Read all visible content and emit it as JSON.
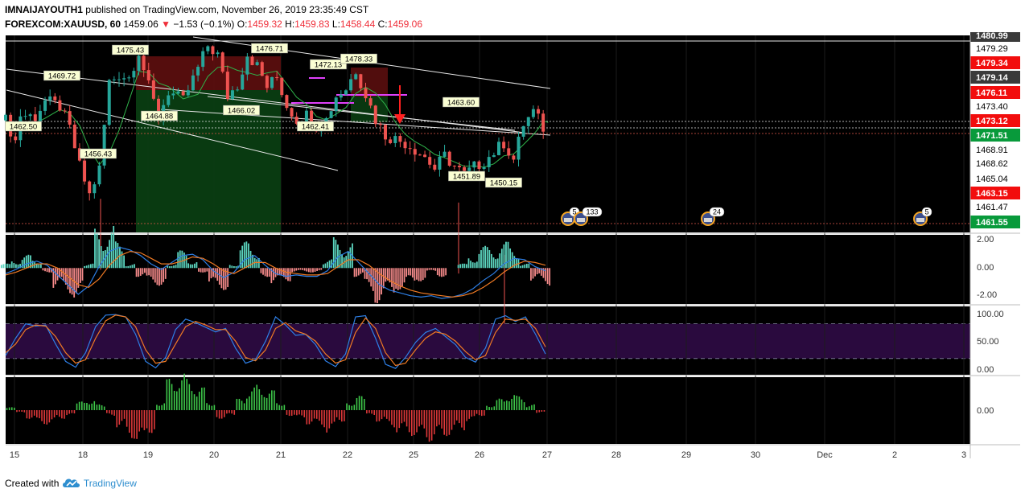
{
  "header": {
    "author": "IMNAIJAYOUTH1",
    "published_text": "published on TradingView.com, November 26, 2019 23:35:49 CST",
    "symbol": "FOREXCOM:XAUUSD, 60",
    "last_price": "1459.06",
    "change": "−1.53 (−0.1%)",
    "o_label": "O:",
    "o_value": "1459.32",
    "h_label": "H:",
    "h_value": "1459.83",
    "l_label": "L:",
    "l_value": "1458.44",
    "c_label": "C:",
    "c_value": "1459.06"
  },
  "footer": {
    "created_with": "Created with",
    "brand": "TradingView"
  },
  "colors": {
    "background": "#000000",
    "up": "#26a69a",
    "down": "#ef5350",
    "axis_green": "#089a3b",
    "axis_red": "#f20d0d",
    "axis_gray": "#3a3a3a",
    "stoch_band": "#2a0a3e",
    "macd_line": "#2e7fe6",
    "signal_line": "#f07a24"
  },
  "chart_data": [
    {
      "type": "candlestick",
      "symbol": "FOREXCOM:XAUUSD",
      "interval": "60",
      "ylim": [
        1460.4,
        1481.5
      ],
      "x_ticks": [
        "15",
        "18",
        "19",
        "20",
        "21",
        "22",
        "25",
        "26",
        "27",
        "28",
        "29",
        "30",
        "Dec",
        "2",
        "3"
      ],
      "price_scale_labels": [
        {
          "value": "1480.99",
          "style": "gray"
        },
        {
          "value": "1479.29",
          "style": "white"
        },
        {
          "value": "1479.34",
          "style": "red"
        },
        {
          "value": "1479.14",
          "style": "gray"
        },
        {
          "value": "1476.11",
          "style": "red"
        },
        {
          "value": "1473.40",
          "style": "white"
        },
        {
          "value": "1473.12",
          "style": "red"
        },
        {
          "value": "1471.51",
          "style": "green"
        },
        {
          "value": "1468.91",
          "style": "white"
        },
        {
          "value": "1468.62",
          "style": "white"
        },
        {
          "value": "1465.04",
          "style": "white"
        },
        {
          "value": "1463.15",
          "style": "red"
        },
        {
          "value": "1461.47",
          "style": "white"
        },
        {
          "value": "1461.55",
          "style": "green"
        }
      ],
      "annotations": [
        "1475.43",
        "1469.72",
        "1462.50",
        "1456.43",
        "1464.88",
        "1466.02",
        "1476.71",
        "1472.13",
        "1478.33",
        "1462.41",
        "1463.60",
        "1451.89",
        "1450.15"
      ],
      "event_badges": [
        "5",
        "133",
        "24",
        "5"
      ],
      "close_path": [
        {
          "t": 0,
          "c": 1472.4
        },
        {
          "t": 2,
          "c": 1470.2
        },
        {
          "t": 3,
          "c": 1473.0
        },
        {
          "t": 6,
          "c": 1472.8
        },
        {
          "t": 8,
          "c": 1474.5
        },
        {
          "t": 11,
          "c": 1473.9
        },
        {
          "t": 13,
          "c": 1471.5
        },
        {
          "t": 15,
          "c": 1467.5
        },
        {
          "t": 17,
          "c": 1464.4
        },
        {
          "t": 19,
          "c": 1467.2
        },
        {
          "t": 21,
          "c": 1476.5
        },
        {
          "t": 23,
          "c": 1477.3
        },
        {
          "t": 25,
          "c": 1477.0
        },
        {
          "t": 27,
          "c": 1479.8
        },
        {
          "t": 29,
          "c": 1476.0
        },
        {
          "t": 31,
          "c": 1472.8
        },
        {
          "t": 33,
          "c": 1475.5
        },
        {
          "t": 36,
          "c": 1474.5
        },
        {
          "t": 39,
          "c": 1478.0
        },
        {
          "t": 41,
          "c": 1480.4
        },
        {
          "t": 43,
          "c": 1479.4
        },
        {
          "t": 45,
          "c": 1475.0
        },
        {
          "t": 47,
          "c": 1476.2
        },
        {
          "t": 49,
          "c": 1479.5
        },
        {
          "t": 51,
          "c": 1478.2
        },
        {
          "t": 53,
          "c": 1476.0
        },
        {
          "t": 55,
          "c": 1477.0
        },
        {
          "t": 57,
          "c": 1474.0
        },
        {
          "t": 59,
          "c": 1472.5
        },
        {
          "t": 61,
          "c": 1473.0
        },
        {
          "t": 63,
          "c": 1471.8
        },
        {
          "t": 65,
          "c": 1472.5
        },
        {
          "t": 67,
          "c": 1475.0
        },
        {
          "t": 69,
          "c": 1475.8
        },
        {
          "t": 71,
          "c": 1477.8
        },
        {
          "t": 73,
          "c": 1475.2
        },
        {
          "t": 75,
          "c": 1472.5
        },
        {
          "t": 77,
          "c": 1470.8
        },
        {
          "t": 79,
          "c": 1470.4
        },
        {
          "t": 81,
          "c": 1470.0
        },
        {
          "t": 83,
          "c": 1469.3
        },
        {
          "t": 85,
          "c": 1468.5
        },
        {
          "t": 87,
          "c": 1467.2
        },
        {
          "t": 89,
          "c": 1468.6
        },
        {
          "t": 91,
          "c": 1467.5
        },
        {
          "t": 93,
          "c": 1466.6
        },
        {
          "t": 95,
          "c": 1467.4
        },
        {
          "t": 97,
          "c": 1468.0
        },
        {
          "t": 99,
          "c": 1469.0
        },
        {
          "t": 101,
          "c": 1470.0
        },
        {
          "t": 103,
          "c": 1468.2
        },
        {
          "t": 105,
          "c": 1472.0
        },
        {
          "t": 107,
          "c": 1473.3
        },
        {
          "t": 108,
          "c": 1472.5
        },
        {
          "t": 109,
          "c": 1471.6
        },
        {
          "t": 110,
          "c": 1471.3
        }
      ]
    },
    {
      "type": "line",
      "name": "MACD",
      "ylim": [
        -2.6,
        2.4
      ],
      "y_ticks": [
        "2.00",
        "0.00",
        "-2.00"
      ],
      "macd": [
        -0.4,
        -0.1,
        0.3,
        0.5,
        0.2,
        -0.5,
        -1.2,
        -1.9,
        -1.3,
        0.1,
        1.2,
        1.5,
        1.3,
        0.9,
        0.3,
        -0.1,
        0.4,
        0.9,
        1.0,
        0.6,
        -0.2,
        -0.7,
        -0.3,
        0.6,
        0.9,
        0.2,
        -0.4,
        -0.6,
        -0.5,
        -0.6,
        -0.6,
        -0.2,
        0.8,
        1.2,
        0.4,
        -0.4,
        -1.2,
        -1.6,
        -1.8,
        -2.0,
        -2.1,
        -2.0,
        -2.2,
        -2.1,
        -1.9,
        -1.5,
        -0.9,
        -0.4,
        0.3,
        0.7,
        0.6,
        0.1,
        -0.2
      ],
      "signal": [
        -0.5,
        -0.3,
        0.0,
        0.3,
        0.3,
        0.0,
        -0.6,
        -1.2,
        -1.4,
        -0.8,
        0.2,
        0.9,
        1.2,
        1.1,
        0.7,
        0.3,
        0.3,
        0.5,
        0.8,
        0.7,
        0.3,
        -0.2,
        -0.4,
        0.0,
        0.4,
        0.4,
        0.0,
        -0.3,
        -0.4,
        -0.5,
        -0.5,
        -0.4,
        0.1,
        0.6,
        0.6,
        0.2,
        -0.4,
        -0.9,
        -1.3,
        -1.6,
        -1.8,
        -1.9,
        -2.0,
        -2.1,
        -2.0,
        -1.8,
        -1.4,
        -0.9,
        -0.3,
        0.2,
        0.5,
        0.4,
        0.2
      ]
    },
    {
      "type": "line",
      "name": "Stochastic",
      "ylim": [
        -8,
        110
      ],
      "y_ticks": [
        "100.00",
        "50.00",
        "0.00"
      ],
      "band": [
        20,
        80
      ],
      "k": [
        25,
        55,
        80,
        76,
        78,
        45,
        15,
        5,
        30,
        75,
        95,
        96,
        92,
        62,
        15,
        4,
        22,
        70,
        88,
        82,
        74,
        66,
        72,
        38,
        12,
        18,
        50,
        92,
        78,
        60,
        62,
        44,
        16,
        6,
        28,
        92,
        94,
        55,
        10,
        3,
        22,
        48,
        65,
        72,
        58,
        44,
        22,
        14,
        38,
        88,
        94,
        84,
        92,
        62,
        28
      ],
      "d": [
        30,
        45,
        70,
        78,
        76,
        58,
        30,
        12,
        18,
        55,
        85,
        95,
        92,
        75,
        35,
        12,
        15,
        45,
        75,
        84,
        78,
        70,
        70,
        50,
        22,
        16,
        35,
        72,
        82,
        68,
        62,
        50,
        28,
        12,
        18,
        65,
        90,
        72,
        30,
        8,
        12,
        35,
        55,
        66,
        62,
        50,
        32,
        18,
        25,
        65,
        88,
        86,
        88,
        72,
        40
      ]
    },
    {
      "type": "bar",
      "name": "Histogram oscillator",
      "y_ticks": [
        "0.00"
      ],
      "values": [
        0.1,
        -0.1,
        -0.3,
        -0.5,
        -0.5,
        -0.3,
        -0.2,
        0.3,
        0.4,
        0.2,
        -0.2,
        -0.6,
        -1.0,
        -1.2,
        -0.8,
        0.3,
        1.1,
        1.3,
        1.1,
        0.8,
        0.3,
        -0.3,
        -0.2,
        0.4,
        0.8,
        0.9,
        0.7,
        0.3,
        -0.2,
        -0.3,
        -0.5,
        -0.6,
        -0.8,
        -0.4,
        0.3,
        0.5,
        -0.2,
        -0.4,
        -0.6,
        -0.8,
        -0.9,
        -1.0,
        -1.1,
        -1.0,
        -0.9,
        -0.7,
        -0.4,
        -0.2,
        0.2,
        0.4,
        0.6,
        0.5,
        0.2,
        -0.1
      ]
    }
  ]
}
